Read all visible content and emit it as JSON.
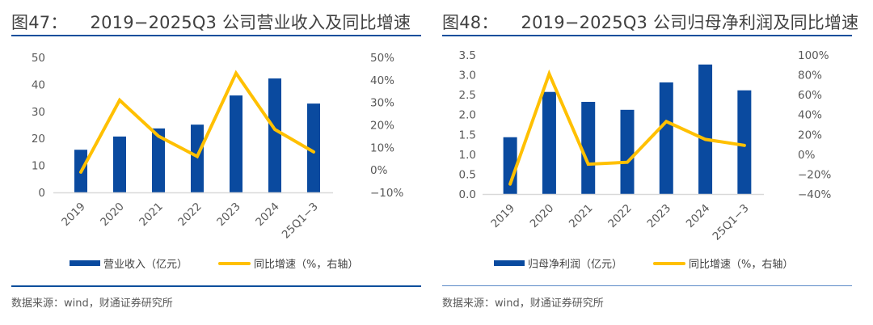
{
  "source_note": "数据来源：wind，财通证券研究所",
  "colors": {
    "bar": "#0a4a9f",
    "line": "#ffc000",
    "axis": "#d9d9d9",
    "rule": "#0d4e9c"
  },
  "chart_data": [
    {
      "type": "bar+line",
      "figure_no": "图47：",
      "title": "2019−2025Q3 公司营业收入及同比增速",
      "categories": [
        "2019",
        "2020",
        "2021",
        "2022",
        "2023",
        "2024",
        "25Q1−3"
      ],
      "series": [
        {
          "name": "营业收入（亿元）",
          "kind": "bar",
          "axis": "left",
          "values": [
            15.8,
            20.7,
            23.7,
            25.1,
            35.9,
            42.2,
            32.9
          ]
        },
        {
          "name": "同比增速（%，右轴）",
          "kind": "line",
          "axis": "right",
          "values": [
            -1,
            31,
            15,
            6,
            43,
            18,
            8
          ]
        }
      ],
      "left_axis": {
        "min": 0,
        "max": 50,
        "step": 10,
        "ticks": [
          "0",
          "10",
          "20",
          "30",
          "40",
          "50"
        ]
      },
      "right_axis": {
        "min": -10,
        "max": 50,
        "step": 10,
        "ticks": [
          "−10%",
          "0%",
          "10%",
          "20%",
          "30%",
          "40%",
          "50%"
        ]
      },
      "legend_position": "bottom",
      "grid": false
    },
    {
      "type": "bar+line",
      "figure_no": "图48：",
      "title": "2019−2025Q3 公司归母净利润及同比增速",
      "categories": [
        "2019",
        "2020",
        "2021",
        "2022",
        "2023",
        "2024",
        "25Q1−3"
      ],
      "series": [
        {
          "name": "归母净利润（亿元）",
          "kind": "bar",
          "axis": "left",
          "values": [
            1.43,
            2.57,
            2.32,
            2.12,
            2.81,
            3.26,
            2.61
          ]
        },
        {
          "name": "同比增速（%，右轴）",
          "kind": "line",
          "axis": "right",
          "values": [
            -30,
            81,
            -10,
            -8,
            33,
            15,
            9
          ]
        }
      ],
      "left_axis": {
        "min": 0,
        "max": 3.5,
        "step": 0.5,
        "ticks": [
          "0.0",
          "0.5",
          "1.0",
          "1.5",
          "2.0",
          "2.5",
          "3.0",
          "3.5"
        ]
      },
      "right_axis": {
        "min": -40,
        "max": 100,
        "step": 20,
        "ticks": [
          "−40%",
          "−20%",
          "0%",
          "20%",
          "40%",
          "60%",
          "80%",
          "100%"
        ]
      },
      "legend_position": "bottom",
      "grid": false
    }
  ]
}
